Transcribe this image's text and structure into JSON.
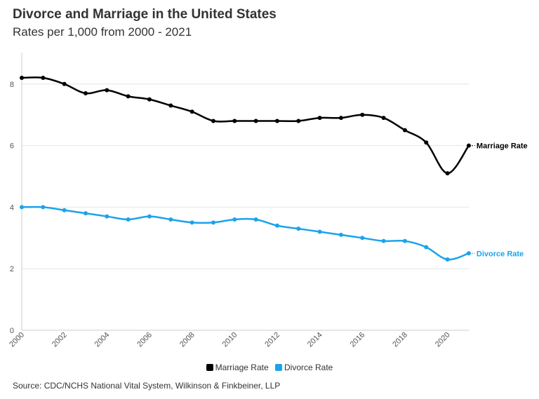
{
  "chart_data": {
    "type": "line",
    "title": "Divorce and Marriage in the United States",
    "subtitle": "Rates per 1,000 from 2000 - 2021",
    "source": "Source: CDC/NCHS National Vital System, Wilkinson & Finkbeiner, LLP",
    "x": [
      2000,
      2001,
      2002,
      2003,
      2004,
      2005,
      2006,
      2007,
      2008,
      2009,
      2010,
      2011,
      2012,
      2013,
      2014,
      2015,
      2016,
      2017,
      2018,
      2019,
      2020,
      2021
    ],
    "xticks": [
      "2000",
      "2002",
      "2004",
      "2006",
      "2008",
      "2010",
      "2012",
      "2014",
      "2016",
      "2018",
      "2020"
    ],
    "yticks": [
      "0",
      "2",
      "4",
      "6",
      "8"
    ],
    "ylim": [
      0,
      9
    ],
    "grid": true,
    "legend_placement": "bottom",
    "series": [
      {
        "name": "Marriage Rate",
        "color": "#000000",
        "values": [
          8.2,
          8.2,
          8.0,
          7.7,
          7.8,
          7.6,
          7.5,
          7.3,
          7.1,
          6.8,
          6.8,
          6.8,
          6.8,
          6.8,
          6.9,
          6.9,
          7.0,
          6.9,
          6.5,
          6.1,
          5.1,
          6.0
        ]
      },
      {
        "name": "Divorce Rate",
        "color": "#1ba3ec",
        "values": [
          4.0,
          4.0,
          3.9,
          3.8,
          3.7,
          3.6,
          3.7,
          3.6,
          3.5,
          3.5,
          3.6,
          3.6,
          3.4,
          3.3,
          3.2,
          3.1,
          3.0,
          2.9,
          2.9,
          2.7,
          2.3,
          2.5
        ]
      }
    ]
  }
}
